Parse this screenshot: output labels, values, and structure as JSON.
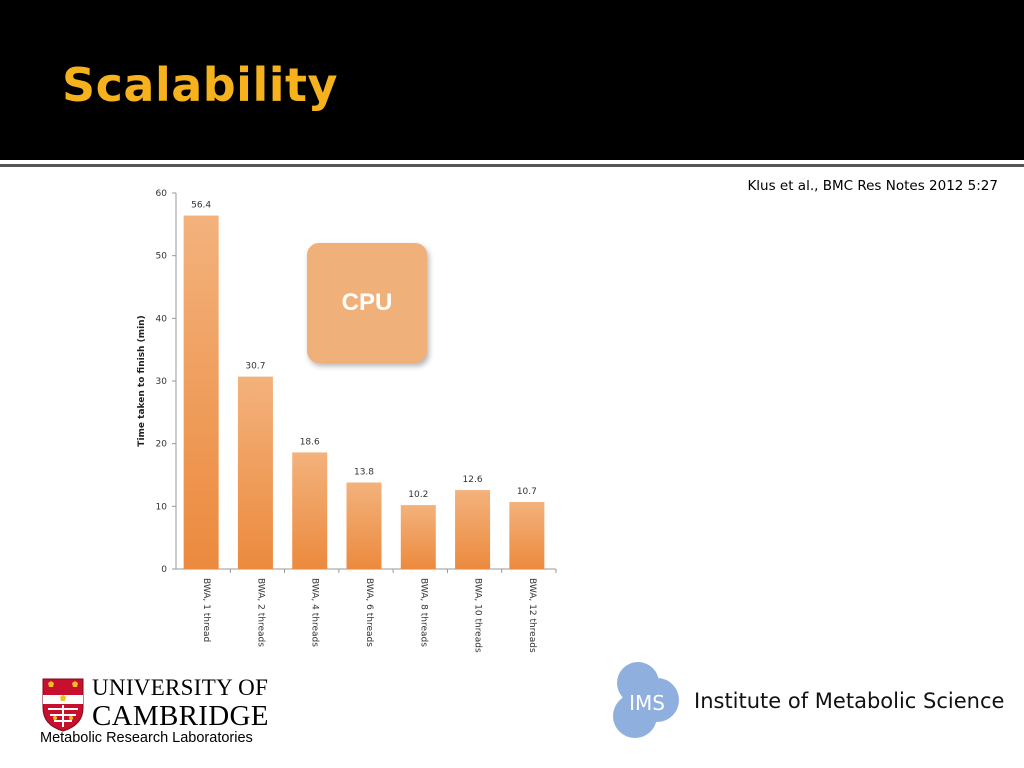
{
  "slide": {
    "title": "Scalability",
    "citation": "Klus et al., BMC Res Notes 2012 5:27",
    "overlay_label": "CPU"
  },
  "logos": {
    "cambridge_line1": "UNIVERSITY OF",
    "cambridge_line2": "CAMBRIDGE",
    "cambridge_line3": "Metabolic Research Laboratories",
    "ims_badge": "IMS",
    "ims_name": "Institute of Metabolic Science"
  },
  "colors": {
    "title": "#f6b21c",
    "bar_top": "#f3b27c",
    "bar_bottom": "#ec8a3e",
    "overlay": "#f0b07a",
    "ims_blue": "#8fb0de"
  },
  "chart_data": {
    "type": "bar",
    "categories": [
      "BWA, 1 thread",
      "BWA, 2 threads",
      "BWA, 4 threads",
      "BWA, 6 threads",
      "BWA, 8 threads",
      "BWA, 10 threads",
      "BWA, 12 threads"
    ],
    "values": [
      56.4,
      30.7,
      18.6,
      13.8,
      10.2,
      12.6,
      10.7
    ],
    "data_labels": [
      "56.4",
      "30.7",
      "18.6",
      "13.8",
      "10.2",
      "12.6",
      "10.7"
    ],
    "title": "",
    "xlabel": "",
    "ylabel": "Time taken to finish  (min)",
    "ylim": [
      0,
      60
    ],
    "yticks": [
      0,
      10,
      20,
      30,
      40,
      50,
      60
    ],
    "grid": false,
    "legend": "none"
  }
}
